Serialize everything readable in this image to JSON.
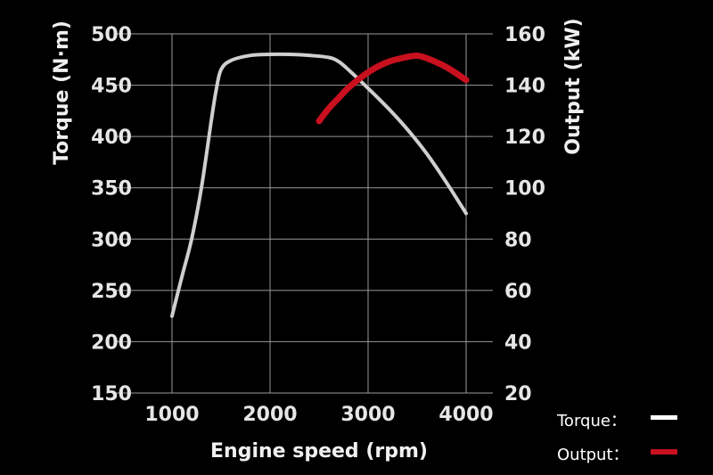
{
  "chart_data": {
    "type": "line",
    "xlabel": "Engine speed (rpm)",
    "ylabel_left": "Torque (N·m)",
    "ylabel_right": "Output (kW)",
    "x_range": [
      1000,
      4000
    ],
    "y_left_range": [
      150,
      500
    ],
    "y_right_range": [
      20,
      160
    ],
    "x_ticks": [
      "1000",
      "2000",
      "3000",
      "4000"
    ],
    "y_left_ticks": [
      "150",
      "200",
      "250",
      "300",
      "350",
      "400",
      "450",
      "500"
    ],
    "y_right_ticks": [
      "20",
      "40",
      "60",
      "80",
      "100",
      "120",
      "140",
      "160"
    ],
    "grid": true,
    "legend_position": "bottom-right",
    "colors": {
      "background": "#000000",
      "grid": "#9a9a9a",
      "torque": "#cfcfcf",
      "output": "#c8101e"
    },
    "series": [
      {
        "name": "Torque",
        "axis": "left",
        "x": [
          1000,
          1100,
          1200,
          1300,
          1400,
          1450,
          1500,
          1600,
          1800,
          2000,
          2200,
          2400,
          2600,
          2700,
          2800,
          3000,
          3200,
          3400,
          3600,
          3800,
          4000
        ],
        "y": [
          225,
          263,
          300,
          350,
          415,
          445,
          465,
          474,
          479,
          480,
          480,
          479,
          477,
          473,
          465,
          447,
          428,
          407,
          383,
          355,
          325
        ]
      },
      {
        "name": "Output",
        "axis": "right",
        "x": [
          2500,
          2600,
          2700,
          2800,
          3000,
          3200,
          3400,
          3500,
          3600,
          3800,
          4000
        ],
        "y": [
          126,
          131,
          135,
          139,
          145,
          149,
          151,
          151.5,
          150.5,
          147,
          142
        ]
      }
    ],
    "legend": [
      {
        "label": "Torque：",
        "series": "Torque"
      },
      {
        "label": "Output：",
        "series": "Output"
      }
    ]
  }
}
